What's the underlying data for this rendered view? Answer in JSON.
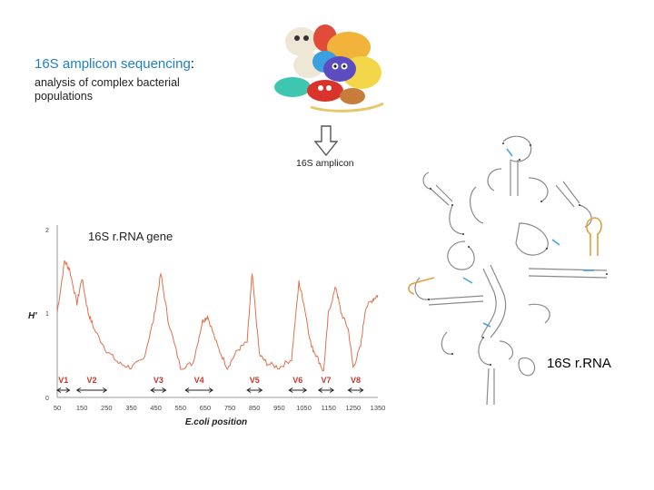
{
  "title": {
    "highlight": "16S amplicon sequencing",
    "suffix": ":"
  },
  "subtitle": "analysis of complex bacterial populations",
  "amplicon_label": "16S amplicon",
  "gene_label": "16S r.RNA gene",
  "rrna_label": "16S r.RNA",
  "chart": {
    "ylabel": "H'",
    "xlabel": "E.coli position",
    "y_ticks": [
      "2",
      "1",
      "0"
    ],
    "x_ticks": [
      "50",
      "150",
      "250",
      "350",
      "450",
      "550",
      "650",
      "750",
      "850",
      "950",
      "1050",
      "1150",
      "1250",
      "1350"
    ],
    "regions": [
      "V1",
      "V2",
      "V3",
      "V4",
      "V5",
      "V6",
      "V7",
      "V8"
    ]
  },
  "colors": {
    "accent": "#1f7fc0",
    "line": "#e2704a",
    "region_label": "#c0392b",
    "helix": "#4aa3d8",
    "hairpin": "#e2a03a"
  },
  "chart_data": {
    "type": "line",
    "xlabel": "E.coli position",
    "ylabel": "H'",
    "xlim": [
      50,
      1350
    ],
    "ylim": [
      0,
      2
    ],
    "x": [
      50,
      80,
      100,
      130,
      150,
      175,
      200,
      250,
      300,
      350,
      400,
      440,
      470,
      500,
      550,
      600,
      640,
      660,
      700,
      740,
      780,
      820,
      840,
      870,
      900,
      950,
      1000,
      1030,
      1050,
      1080,
      1100,
      1130,
      1150,
      1180,
      1200,
      1230,
      1250,
      1280,
      1300,
      1330,
      1350
    ],
    "series": [
      {
        "values": [
          1.0,
          1.6,
          1.5,
          1.1,
          1.4,
          1.0,
          0.8,
          0.55,
          0.4,
          0.35,
          0.45,
          0.9,
          1.45,
          0.9,
          0.35,
          0.4,
          0.9,
          0.95,
          0.6,
          0.35,
          0.55,
          0.65,
          1.45,
          0.5,
          0.4,
          0.35,
          0.45,
          1.35,
          1.1,
          0.6,
          0.5,
          0.3,
          1.0,
          1.3,
          1.0,
          0.8,
          0.35,
          0.6,
          1.05,
          1.15,
          1.2
        ]
      }
    ],
    "regions": [
      {
        "name": "V1",
        "range": [
          50,
          100
        ]
      },
      {
        "name": "V2",
        "range": [
          130,
          250
        ]
      },
      {
        "name": "V3",
        "range": [
          430,
          490
        ]
      },
      {
        "name": "V4",
        "range": [
          570,
          680
        ]
      },
      {
        "name": "V5",
        "range": [
          820,
          880
        ]
      },
      {
        "name": "V6",
        "range": [
          990,
          1060
        ]
      },
      {
        "name": "V7",
        "range": [
          1110,
          1170
        ]
      },
      {
        "name": "V8",
        "range": [
          1230,
          1290
        ]
      }
    ]
  }
}
